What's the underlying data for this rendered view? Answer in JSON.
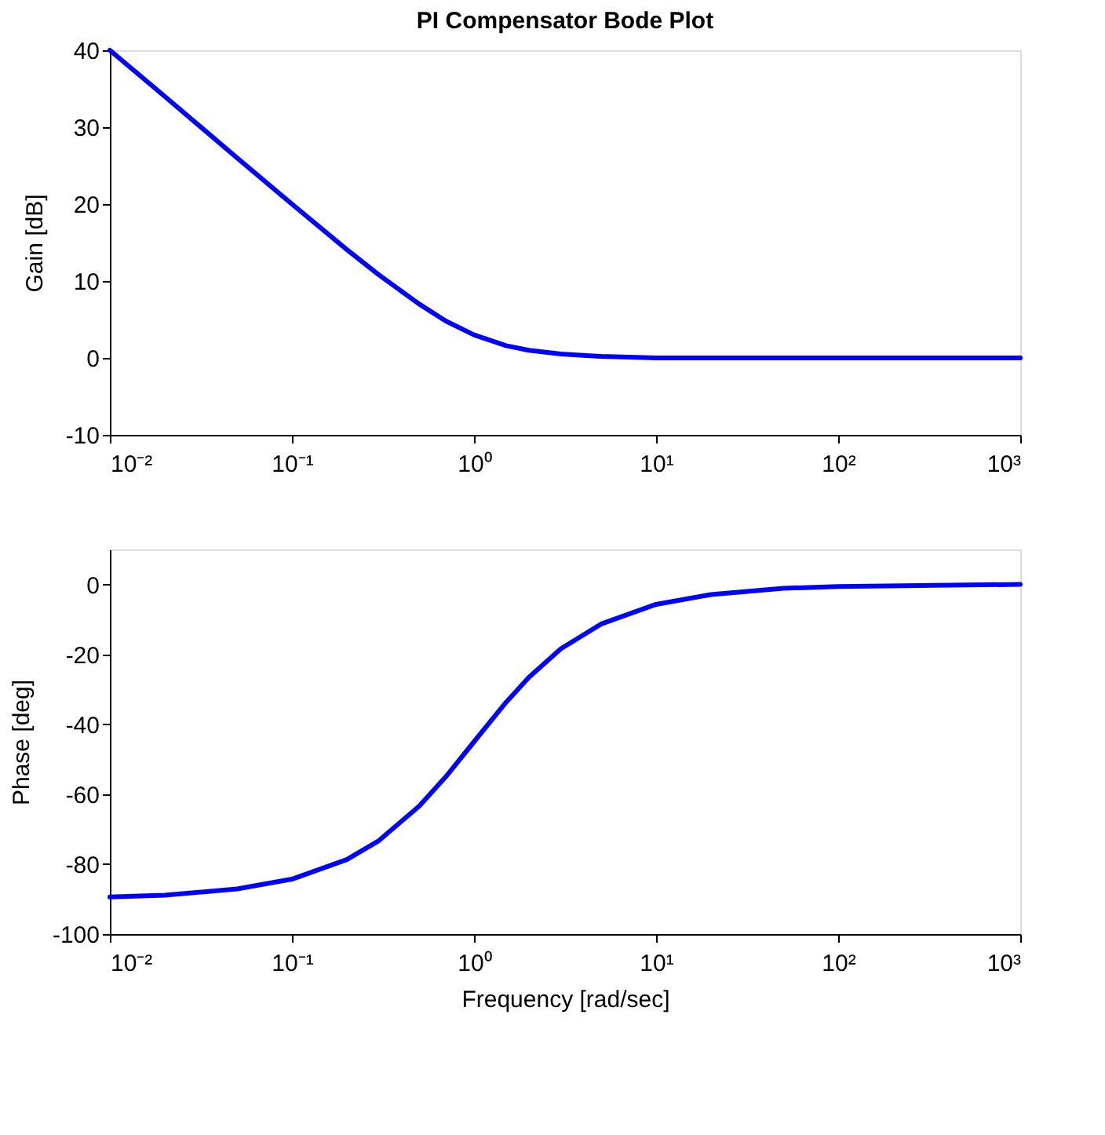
{
  "chart_data": [
    {
      "type": "line",
      "title": "PI Compensator Bode Plot",
      "ylabel": "Gain    [dB]",
      "x": [
        0.01,
        0.02,
        0.05,
        0.1,
        0.2,
        0.3,
        0.5,
        0.7,
        1,
        1.5,
        2,
        3,
        5,
        10,
        20,
        50,
        100,
        1000
      ],
      "series": [
        {
          "color": "#0000ff",
          "values": [
            40.0,
            34.0,
            26.0,
            20.0,
            14.1,
            10.8,
            7.0,
            4.8,
            3.0,
            1.6,
            1.0,
            0.5,
            0.2,
            0.0,
            0.0,
            0.0,
            0.0,
            0.0
          ]
        }
      ],
      "log": "x",
      "xlim": [
        0.01,
        1000
      ],
      "ylim": [
        -10,
        40
      ],
      "yticks": [
        -10,
        0,
        10,
        20,
        30,
        40
      ],
      "xticks": [
        {
          "value": 0.01,
          "label": "10⁻²"
        },
        {
          "value": 0.1,
          "label": "10⁻¹"
        },
        {
          "value": 1,
          "label": "10⁰"
        },
        {
          "value": 10,
          "label": "10¹"
        },
        {
          "value": 100,
          "label": "10²"
        },
        {
          "value": 1000,
          "label": "10³"
        }
      ],
      "grid": false,
      "line_style": "solid"
    },
    {
      "type": "line",
      "xlabel": "Frequency    [rad/sec]",
      "ylabel": "Phase    [deg]",
      "x": [
        0.01,
        0.02,
        0.05,
        0.1,
        0.2,
        0.3,
        0.5,
        0.7,
        1,
        1.5,
        2,
        3,
        5,
        10,
        20,
        50,
        100,
        1000
      ],
      "series": [
        {
          "color": "#0000ff",
          "values": [
            -89.4,
            -88.9,
            -87.1,
            -84.3,
            -78.7,
            -73.3,
            -63.4,
            -55.0,
            -45.0,
            -33.7,
            -26.6,
            -18.4,
            -11.3,
            -5.7,
            -2.9,
            -1.1,
            -0.6,
            0.0
          ]
        }
      ],
      "log": "x",
      "xlim": [
        0.01,
        1000
      ],
      "ylim": [
        -100,
        10
      ],
      "yticks": [
        -100,
        -80,
        -60,
        -40,
        -20,
        0
      ],
      "xticks": [
        {
          "value": 0.01,
          "label": "10⁻²"
        },
        {
          "value": 0.1,
          "label": "10⁻¹"
        },
        {
          "value": 1,
          "label": "10⁰"
        },
        {
          "value": 10,
          "label": "10¹"
        },
        {
          "value": 100,
          "label": "10²"
        },
        {
          "value": 1000,
          "label": "10³"
        }
      ],
      "grid": false,
      "line_style": "solid"
    }
  ]
}
